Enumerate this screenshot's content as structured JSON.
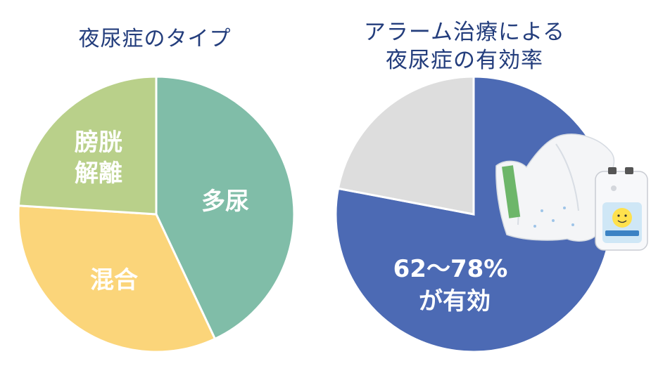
{
  "chart_data": [
    {
      "type": "pie",
      "title": "夜尿症のタイプ",
      "slices": [
        {
          "label": "多尿",
          "value": 43,
          "color": "#80bda8"
        },
        {
          "label": "混合",
          "value": 33,
          "color": "#fbd57a"
        },
        {
          "label": "膀胱解離",
          "value": 24,
          "color": "#b9d08a"
        }
      ],
      "start_angle_deg": 0,
      "direction": "clockwise",
      "slice_border_color": "#ffffff"
    },
    {
      "type": "pie",
      "title_lines": [
        "アラーム治療による",
        "夜尿症の有効率"
      ],
      "slices": [
        {
          "label_lines": [
            "62〜78%",
            "が有効"
          ],
          "value": 78,
          "color": "#4c6ab4"
        },
        {
          "label": "",
          "value": 22,
          "color": "#dddddd"
        }
      ],
      "start_angle_deg": 0,
      "direction": "clockwise",
      "slice_border_color": "#ffffff",
      "image_overlay": "alarm-device-and-diaper-photo"
    }
  ]
}
